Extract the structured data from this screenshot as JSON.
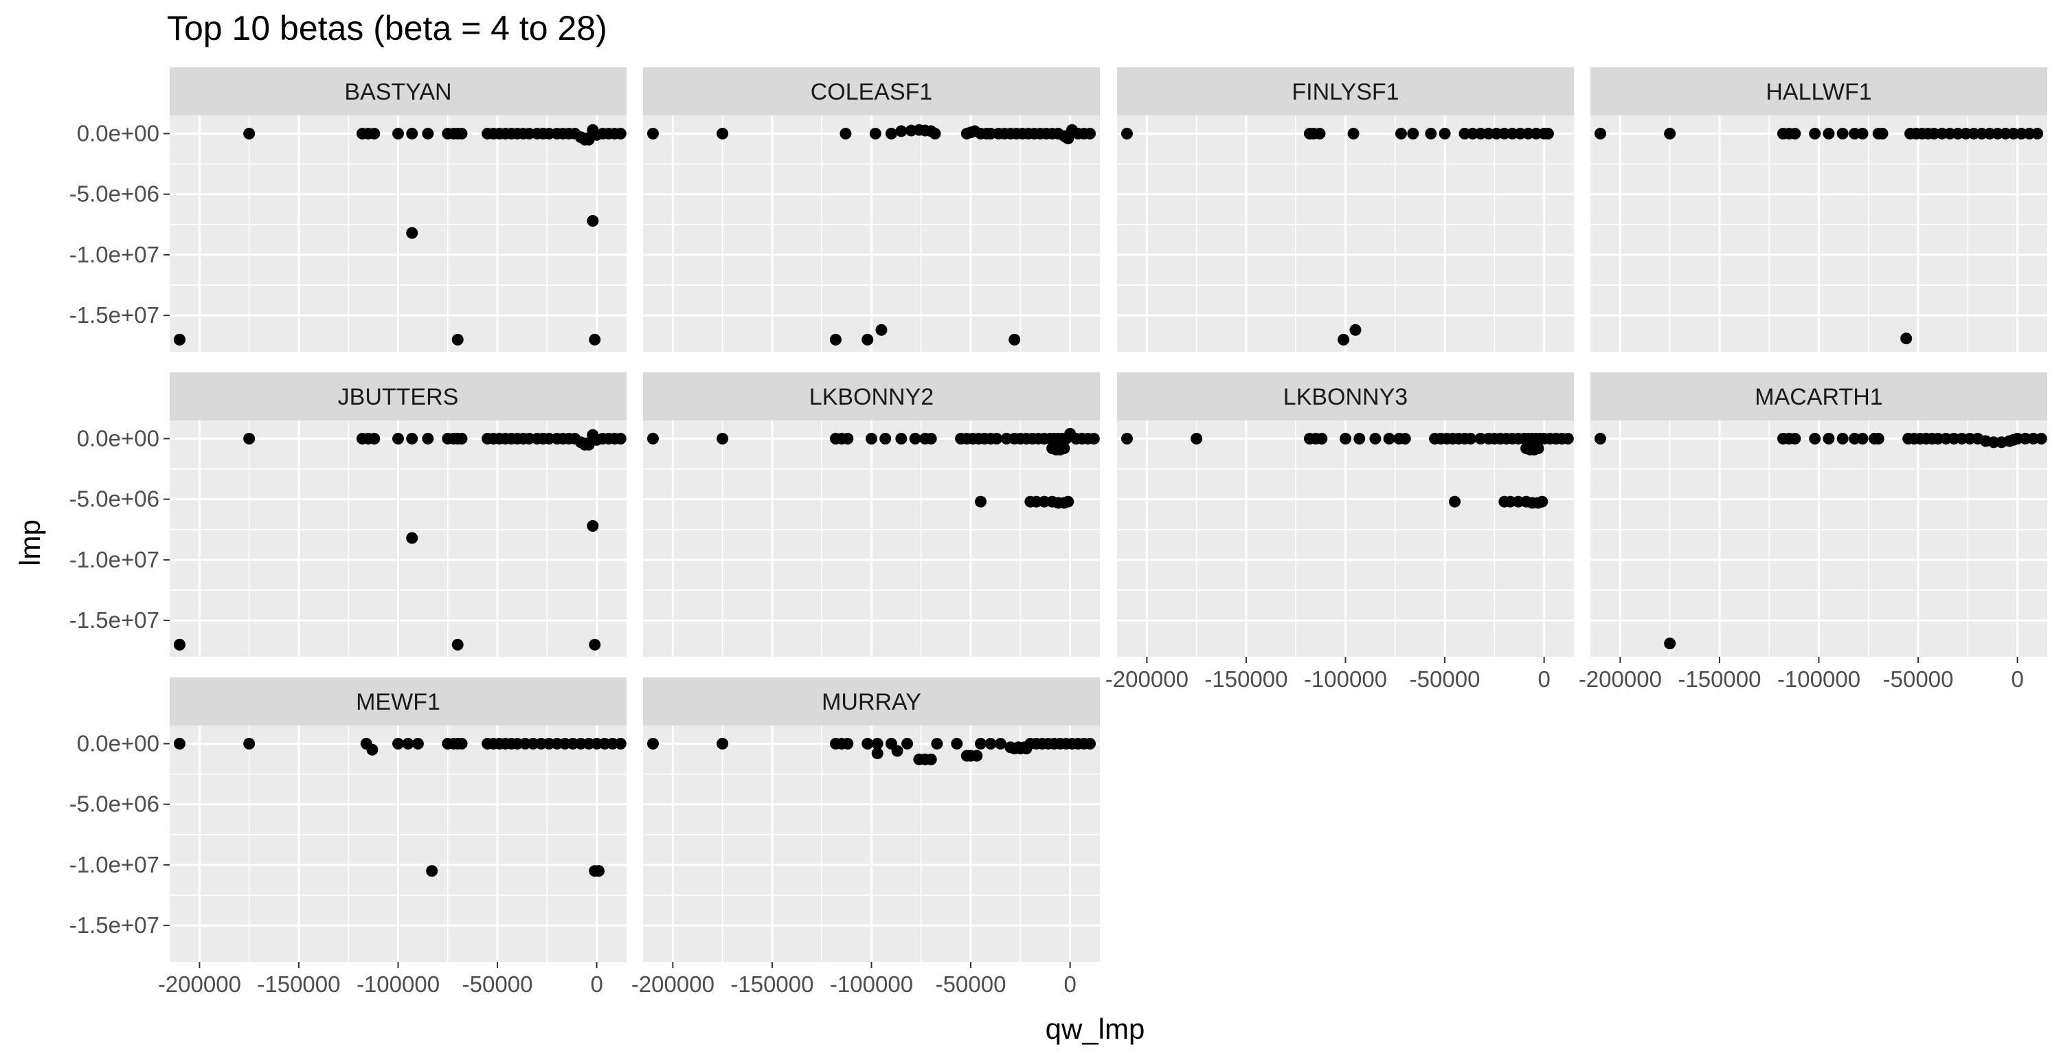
{
  "chart_data": {
    "type": "scatter",
    "title": "Top 10 betas (beta = 4 to 28)",
    "xlabel": "qw_lmp",
    "ylabel": "lmp",
    "xlim": [
      -215000,
      15000
    ],
    "ylim": [
      -18000000,
      1500000
    ],
    "x_ticks": [
      -200000,
      -150000,
      -100000,
      -50000,
      0
    ],
    "x_tick_labels": [
      "-200000",
      "-150000",
      "-100000",
      "-50000",
      "0"
    ],
    "y_ticks": [
      0,
      -5000000,
      -10000000,
      -15000000
    ],
    "y_tick_labels": [
      "0.0e+00",
      "-5.0e+06",
      "-1.0e+07",
      "-1.5e+07"
    ],
    "grid": true,
    "colors": {
      "panel_bg": "#ebebeb",
      "strip_bg": "#d9d9d9",
      "grid": "#ffffff",
      "point": "#000000"
    },
    "panels": [
      {
        "name": "BASTYAN",
        "x": [
          -210000,
          -175000,
          -118000,
          -115000,
          -112000,
          -100000,
          -93000,
          -85000,
          -75000,
          -72000,
          -70000,
          -68000,
          -55000,
          -52000,
          -49000,
          -46000,
          -43000,
          -40000,
          -37000,
          -34000,
          -30000,
          -27000,
          -24000,
          -20000,
          -17000,
          -14000,
          -11000,
          -8000,
          -5000,
          -2000,
          0,
          3000,
          6000,
          9000,
          12000,
          -6000,
          -4000,
          -93000,
          -2000,
          -210000,
          -70000,
          -1000
        ],
        "y": [
          -17000000,
          0,
          0,
          0,
          0,
          0,
          0,
          0,
          0,
          0,
          0,
          0,
          0,
          0,
          0,
          0,
          0,
          0,
          0,
          0,
          0,
          0,
          0,
          0,
          0,
          0,
          0,
          -300000,
          -400000,
          300000,
          -100000,
          0,
          0,
          0,
          0,
          -500000,
          -500000,
          -8200000,
          -7200000,
          -17000000,
          -17000000,
          -17000000
        ]
      },
      {
        "name": "COLEASF1",
        "x": [
          -210000,
          -175000,
          -113000,
          -98000,
          -90000,
          -85000,
          -80000,
          -76000,
          -73000,
          -70000,
          -68000,
          -52000,
          -50000,
          -48000,
          -45000,
          -42000,
          -40000,
          -36000,
          -33000,
          -30000,
          -27000,
          -24000,
          -21000,
          -18000,
          -15000,
          -12000,
          -9000,
          -6000,
          -3000,
          -1000,
          1000,
          4000,
          7000,
          10000,
          -2000,
          -118000,
          -102000,
          -95000,
          -28000
        ],
        "y": [
          0,
          0,
          0,
          0,
          0,
          200000,
          250000,
          300000,
          250000,
          200000,
          0,
          0,
          100000,
          200000,
          0,
          0,
          0,
          0,
          0,
          0,
          0,
          0,
          0,
          0,
          0,
          0,
          0,
          0,
          -200000,
          -400000,
          300000,
          0,
          0,
          0,
          -300000,
          -17000000,
          -17000000,
          -16200000,
          -17000000
        ]
      },
      {
        "name": "FINLYSF1",
        "x": [
          -210000,
          -118000,
          -116000,
          -113000,
          -96000,
          -72000,
          -66000,
          -57000,
          -50000,
          -40000,
          -36000,
          -32000,
          -28000,
          -24000,
          -20000,
          -16000,
          -12000,
          -8000,
          -4000,
          0,
          2000,
          -101000,
          -95000
        ],
        "y": [
          0,
          0,
          0,
          0,
          0,
          0,
          0,
          0,
          0,
          0,
          0,
          0,
          0,
          0,
          0,
          0,
          0,
          0,
          0,
          0,
          0,
          -17000000,
          -16200000
        ]
      },
      {
        "name": "HALLWF1",
        "x": [
          -210000,
          -175000,
          -118000,
          -115000,
          -112000,
          -102000,
          -95000,
          -88000,
          -82000,
          -78000,
          -70000,
          -68000,
          -54000,
          -51000,
          -48000,
          -45000,
          -42000,
          -38000,
          -34000,
          -30000,
          -26000,
          -22000,
          -18000,
          -14000,
          -10000,
          -6000,
          -2000,
          2000,
          6000,
          10000,
          -56000
        ],
        "y": [
          0,
          0,
          0,
          0,
          0,
          0,
          0,
          0,
          0,
          0,
          0,
          0,
          0,
          0,
          0,
          0,
          0,
          0,
          0,
          0,
          0,
          0,
          0,
          0,
          0,
          0,
          0,
          0,
          0,
          0,
          -16900000
        ]
      },
      {
        "name": "JBUTTERS",
        "x": [
          -210000,
          -175000,
          -118000,
          -115000,
          -112000,
          -100000,
          -93000,
          -85000,
          -75000,
          -72000,
          -70000,
          -68000,
          -55000,
          -52000,
          -49000,
          -46000,
          -43000,
          -40000,
          -37000,
          -34000,
          -30000,
          -27000,
          -24000,
          -20000,
          -17000,
          -14000,
          -11000,
          -8000,
          -5000,
          -2000,
          0,
          3000,
          6000,
          9000,
          12000,
          -6000,
          -4000,
          -93000,
          -2000,
          -210000,
          -70000,
          -1000
        ],
        "y": [
          -17000000,
          0,
          0,
          0,
          0,
          0,
          0,
          0,
          0,
          0,
          0,
          0,
          0,
          0,
          0,
          0,
          0,
          0,
          0,
          0,
          0,
          0,
          0,
          0,
          0,
          0,
          0,
          -300000,
          -400000,
          300000,
          -100000,
          0,
          0,
          0,
          0,
          -500000,
          -500000,
          -8200000,
          -7200000,
          -17000000,
          -17000000,
          -17000000
        ]
      },
      {
        "name": "LKBONNY2",
        "x": [
          -210000,
          -175000,
          -118000,
          -115000,
          -112000,
          -100000,
          -93000,
          -85000,
          -78000,
          -73000,
          -70000,
          -55000,
          -52000,
          -49000,
          -46000,
          -43000,
          -40000,
          -37000,
          -32000,
          -28000,
          -25000,
          -22000,
          -19000,
          -16000,
          -13000,
          -10000,
          -8000,
          -6000,
          -4000,
          -2000,
          0,
          3000,
          6000,
          9000,
          12000,
          -9000,
          -7000,
          -5000,
          -3000,
          -45000,
          -20000,
          -17000,
          -13000,
          -9000,
          -6000,
          -3000,
          -1000
        ],
        "y": [
          0,
          0,
          0,
          0,
          0,
          0,
          0,
          0,
          0,
          0,
          0,
          0,
          0,
          0,
          0,
          0,
          0,
          0,
          0,
          0,
          0,
          0,
          0,
          0,
          0,
          0,
          0,
          0,
          0,
          0,
          400000,
          0,
          0,
          0,
          0,
          -800000,
          -900000,
          -900000,
          -800000,
          -5200000,
          -5200000,
          -5200000,
          -5200000,
          -5200000,
          -5300000,
          -5300000,
          -5200000
        ]
      },
      {
        "name": "LKBONNY3",
        "x": [
          -210000,
          -175000,
          -118000,
          -115000,
          -112000,
          -100000,
          -93000,
          -85000,
          -78000,
          -73000,
          -70000,
          -55000,
          -52000,
          -49000,
          -46000,
          -43000,
          -40000,
          -37000,
          -32000,
          -28000,
          -25000,
          -22000,
          -19000,
          -16000,
          -13000,
          -10000,
          -8000,
          -6000,
          -4000,
          -2000,
          0,
          3000,
          6000,
          9000,
          12000,
          -9000,
          -7000,
          -5000,
          -3000,
          -45000,
          -20000,
          -17000,
          -13000,
          -9000,
          -6000,
          -3000,
          -1000
        ],
        "y": [
          0,
          0,
          0,
          0,
          0,
          0,
          0,
          0,
          0,
          0,
          0,
          0,
          0,
          0,
          0,
          0,
          0,
          0,
          0,
          0,
          0,
          0,
          0,
          0,
          0,
          0,
          0,
          0,
          0,
          0,
          0,
          0,
          0,
          0,
          0,
          -800000,
          -900000,
          -900000,
          -800000,
          -5200000,
          -5200000,
          -5200000,
          -5200000,
          -5200000,
          -5300000,
          -5300000,
          -5200000
        ]
      },
      {
        "name": "MACARTH1",
        "x": [
          -210000,
          -118000,
          -115000,
          -112000,
          -102000,
          -95000,
          -88000,
          -82000,
          -78000,
          -72000,
          -70000,
          -55000,
          -52000,
          -49000,
          -46000,
          -43000,
          -40000,
          -36000,
          -32000,
          -28000,
          -24000,
          -20000,
          -16000,
          -12000,
          -8000,
          -4000,
          -2000,
          0,
          4000,
          8000,
          12000,
          -175000
        ],
        "y": [
          0,
          0,
          0,
          0,
          0,
          0,
          0,
          0,
          0,
          0,
          0,
          0,
          0,
          0,
          0,
          0,
          0,
          0,
          0,
          0,
          0,
          0,
          -200000,
          -300000,
          -300000,
          -200000,
          -100000,
          0,
          0,
          0,
          0,
          -16900000
        ]
      },
      {
        "name": "MEWF1",
        "x": [
          -210000,
          -175000,
          -116000,
          -113000,
          -100000,
          -95000,
          -90000,
          -75000,
          -72000,
          -70000,
          -68000,
          -55000,
          -52000,
          -49000,
          -46000,
          -43000,
          -40000,
          -36000,
          -32000,
          -28000,
          -24000,
          -20000,
          -16000,
          -12000,
          -8000,
          -4000,
          0,
          4000,
          8000,
          12000,
          -83000,
          -1000,
          1000
        ],
        "y": [
          0,
          0,
          0,
          -500000,
          0,
          0,
          0,
          0,
          0,
          0,
          0,
          0,
          0,
          0,
          0,
          0,
          0,
          0,
          0,
          0,
          0,
          0,
          0,
          0,
          0,
          0,
          0,
          0,
          0,
          0,
          -10500000,
          -10500000,
          -10500000
        ]
      },
      {
        "name": "MURRAY",
        "x": [
          -210000,
          -175000,
          -118000,
          -115000,
          -112000,
          -102000,
          -97000,
          -97000,
          -90000,
          -87000,
          -82000,
          -76000,
          -73000,
          -70000,
          -67000,
          -57000,
          -52000,
          -50000,
          -47000,
          -45000,
          -40000,
          -35000,
          -30000,
          -26000,
          -23000,
          -20000,
          -17000,
          -14000,
          -11000,
          -8000,
          -5000,
          -2000,
          1000,
          4000,
          7000,
          10000,
          -28000,
          -25000,
          -22000
        ],
        "y": [
          0,
          0,
          0,
          0,
          0,
          0,
          0,
          -800000,
          0,
          -600000,
          0,
          -1300000,
          -1300000,
          -1300000,
          0,
          0,
          -1000000,
          -1000000,
          -1000000,
          0,
          0,
          0,
          -300000,
          -300000,
          -300000,
          0,
          0,
          0,
          0,
          0,
          0,
          0,
          0,
          0,
          0,
          0,
          -400000,
          -400000,
          -400000
        ]
      }
    ]
  }
}
